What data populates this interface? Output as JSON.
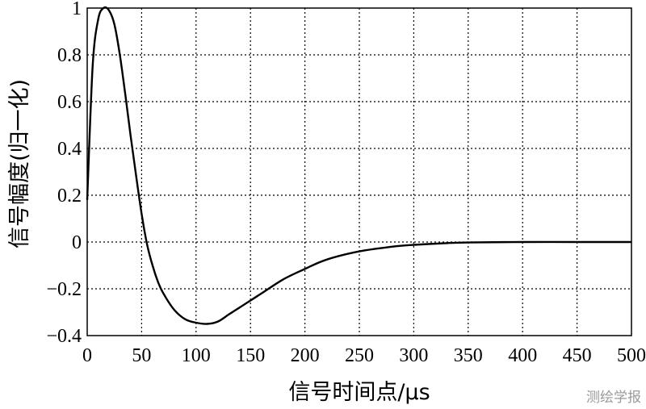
{
  "watermark": "测绘学报",
  "chart_data": {
    "type": "line",
    "xlabel": "信号时间点/μs",
    "ylabel": "信号幅度(归一化)",
    "xlim": [
      0,
      500
    ],
    "ylim": [
      -0.4,
      1.0
    ],
    "xticks": [
      0,
      50,
      100,
      150,
      200,
      250,
      300,
      350,
      400,
      450,
      500
    ],
    "yticks": [
      -0.4,
      -0.2,
      0,
      0.2,
      0.4,
      0.6,
      0.8,
      1.0
    ],
    "xtick_labels": [
      "0",
      "50",
      "100",
      "150",
      "200",
      "250",
      "300",
      "350",
      "400",
      "450",
      "500"
    ],
    "ytick_labels": [
      "−0.4",
      "−0.2",
      "0",
      "0.2",
      "0.4",
      "0.6",
      "0.8",
      "1"
    ],
    "grid": true,
    "series": [
      {
        "color": "#000000",
        "x": [
          0,
          5,
          10,
          15,
          20,
          25,
          30,
          35,
          40,
          45,
          50,
          55,
          60,
          65,
          70,
          80,
          90,
          100,
          110,
          120,
          130,
          140,
          150,
          160,
          180,
          200,
          220,
          250,
          280,
          300,
          330,
          350,
          400,
          450,
          500
        ],
        "y": [
          0.18,
          0.75,
          0.95,
          1.0,
          0.99,
          0.93,
          0.8,
          0.63,
          0.45,
          0.28,
          0.12,
          -0.01,
          -0.1,
          -0.17,
          -0.22,
          -0.29,
          -0.33,
          -0.345,
          -0.35,
          -0.34,
          -0.31,
          -0.28,
          -0.25,
          -0.22,
          -0.16,
          -0.115,
          -0.075,
          -0.04,
          -0.02,
          -0.012,
          -0.005,
          -0.002,
          0.0,
          0.0,
          0.0
        ]
      }
    ]
  }
}
